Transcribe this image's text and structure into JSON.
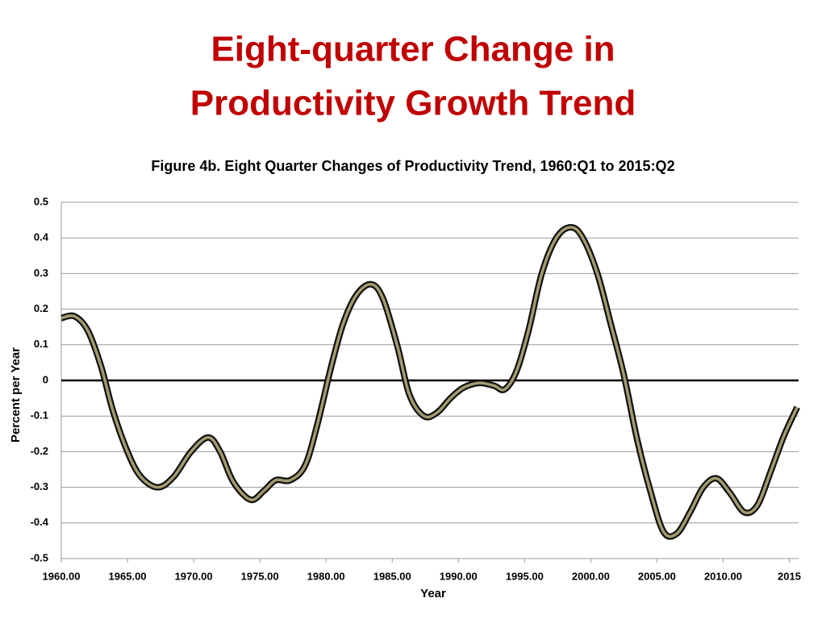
{
  "chart_data": {
    "type": "line",
    "title": [
      "Eight-quarter Change in",
      "Productivity Growth Trend"
    ],
    "subtitle": "Figure 4b. Eight Quarter Changes of Productivity Trend, 1960:Q1 to 2015:Q2",
    "x_label": "Year",
    "y_label": "Percent per Year",
    "x": [
      1960,
      1961,
      1962,
      1963,
      1963.9,
      1965,
      1966,
      1967.3,
      1968.5,
      1969.8,
      1971.1,
      1972,
      1973,
      1974.3,
      1975.3,
      1976.2,
      1977.3,
      1978.4,
      1979.3,
      1980.4,
      1981.3,
      1982.3,
      1983.4,
      1984.3,
      1985.4,
      1986.3,
      1987.4,
      1988.4,
      1989.4,
      1990.4,
      1991.6,
      1992.7,
      1993.5,
      1994.4,
      1995.3,
      1996.3,
      1997.4,
      1998.5,
      1999.4,
      2000.5,
      2001.5,
      2002.5,
      2003.5,
      2004.5,
      2005.5,
      2006.5,
      2007.5,
      2008.5,
      2009.5,
      2010.5,
      2011.6,
      2012.6,
      2013.6,
      2014.6,
      2015.6
    ],
    "series": [
      {
        "name": "Eight-quarter change",
        "color": "#a39a6e",
        "values": [
          0.175,
          0.18,
          0.14,
          0.04,
          -0.085,
          -0.2,
          -0.27,
          -0.3,
          -0.27,
          -0.2,
          -0.16,
          -0.2,
          -0.285,
          -0.335,
          -0.31,
          -0.28,
          -0.28,
          -0.24,
          -0.13,
          0.04,
          0.16,
          0.24,
          0.27,
          0.23,
          0.095,
          -0.04,
          -0.1,
          -0.09,
          -0.05,
          -0.02,
          -0.007,
          -0.015,
          -0.025,
          0.027,
          0.14,
          0.3,
          0.4,
          0.43,
          0.4,
          0.3,
          0.16,
          0.015,
          -0.165,
          -0.31,
          -0.425,
          -0.43,
          -0.37,
          -0.3,
          -0.275,
          -0.315,
          -0.37,
          -0.35,
          -0.255,
          -0.155,
          -0.075
        ]
      }
    ],
    "xlim": [
      1960,
      2015.7
    ],
    "xticks": [
      {
        "value": 1960,
        "label": "1960.00"
      },
      {
        "value": 1965,
        "label": "1965.00"
      },
      {
        "value": 1970,
        "label": "1970.00"
      },
      {
        "value": 1975,
        "label": "1975.00"
      },
      {
        "value": 1980,
        "label": "1980.00"
      },
      {
        "value": 1985,
        "label": "1985.00"
      },
      {
        "value": 1990,
        "label": "1990.00"
      },
      {
        "value": 1995,
        "label": "1995.00"
      },
      {
        "value": 2000,
        "label": "2000.00"
      },
      {
        "value": 2005,
        "label": "2005.00"
      },
      {
        "value": 2010,
        "label": "2010.00"
      },
      2015
    ],
    "ylim": [
      -0.5,
      0.5
    ],
    "yticks": [
      0.5,
      0.4,
      0.3,
      0.2,
      0.1,
      0,
      -0.1,
      -0.2,
      -0.3,
      -0.4,
      -0.5
    ],
    "grid": true,
    "zero_line": true,
    "title_color": "#c00000"
  }
}
